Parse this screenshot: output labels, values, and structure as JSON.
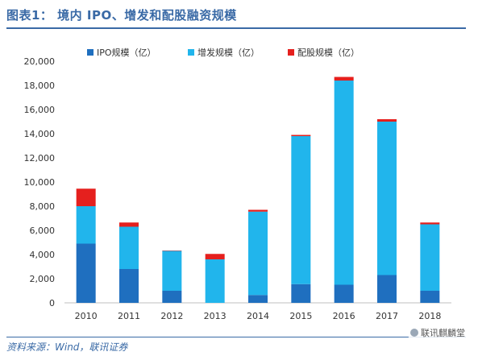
{
  "header": {
    "title": "图表1：  境内 IPO、增发和配股融资规模"
  },
  "footer": {
    "source": "资料来源：Wind，联讯证券",
    "watermark": "联讯麒麟堂"
  },
  "chart_data": {
    "type": "bar",
    "stacked": true,
    "categories": [
      "2010",
      "2011",
      "2012",
      "2013",
      "2014",
      "2015",
      "2016",
      "2017",
      "2018"
    ],
    "series": [
      {
        "name": "IPO规模（亿）",
        "color": "#1f6fbf",
        "values": [
          4900,
          2800,
          1000,
          0,
          650,
          1550,
          1500,
          2300,
          1000
        ]
      },
      {
        "name": "增发规模（亿）",
        "color": "#21b5ec",
        "values": [
          3100,
          3500,
          3300,
          3600,
          6900,
          12250,
          16900,
          12700,
          5500
        ]
      },
      {
        "name": "配股规模（亿）",
        "color": "#e5201e",
        "values": [
          1450,
          350,
          30,
          450,
          150,
          100,
          300,
          200,
          150
        ]
      }
    ],
    "yticks": [
      "0",
      "2,000",
      "4,000",
      "6,000",
      "8,000",
      "10,000",
      "12,000",
      "14,000",
      "16,000",
      "18,000",
      "20,000"
    ],
    "ylim": [
      0,
      20000
    ],
    "legend_position": "top",
    "grid": false
  }
}
